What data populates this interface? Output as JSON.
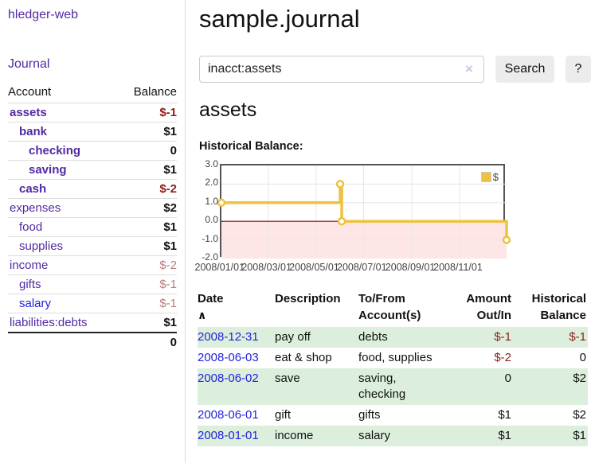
{
  "app": {
    "brand": "hledger-web",
    "nav_journal": "Journal"
  },
  "header": {
    "title": "sample.journal"
  },
  "search": {
    "value": "inacct:assets",
    "clear_icon": "×",
    "search_label": "Search",
    "help_label": "?"
  },
  "sidebar": {
    "account_header": "Account",
    "balance_header": "Balance",
    "accounts": [
      {
        "name": "assets",
        "balance": "$-1",
        "indent": 0,
        "bold": true,
        "name_color": "purple",
        "balance_class": "neg-strong"
      },
      {
        "name": "bank",
        "balance": "$1",
        "indent": 1,
        "bold": true,
        "name_color": "purple",
        "balance_class": "pos"
      },
      {
        "name": "checking",
        "balance": "0",
        "indent": 2,
        "bold": true,
        "name_color": "purple",
        "balance_class": "pos"
      },
      {
        "name": "saving",
        "balance": "$1",
        "indent": 2,
        "bold": true,
        "name_color": "purple",
        "balance_class": "pos"
      },
      {
        "name": "cash",
        "balance": "$-2",
        "indent": 1,
        "bold": true,
        "name_color": "purple",
        "balance_class": "neg-strong"
      },
      {
        "name": "expenses",
        "balance": "$2",
        "indent": 0,
        "bold": false,
        "name_color": "purple",
        "balance_class": "pos"
      },
      {
        "name": "food",
        "balance": "$1",
        "indent": 1,
        "bold": false,
        "name_color": "purple",
        "balance_class": "pos"
      },
      {
        "name": "supplies",
        "balance": "$1",
        "indent": 1,
        "bold": false,
        "name_color": "purple",
        "balance_class": "pos"
      },
      {
        "name": "income",
        "balance": "$-2",
        "indent": 0,
        "bold": false,
        "name_color": "purple",
        "balance_class": "neg-soft"
      },
      {
        "name": "gifts",
        "balance": "$-1",
        "indent": 1,
        "bold": false,
        "name_color": "purple",
        "balance_class": "neg-soft"
      },
      {
        "name": "salary",
        "balance": "$-1",
        "indent": 1,
        "bold": false,
        "name_color": "blue",
        "balance_class": "neg-soft"
      },
      {
        "name": "liabilities:debts",
        "balance": "$1",
        "indent": 0,
        "bold": false,
        "name_color": "purple",
        "balance_class": "pos"
      }
    ],
    "total": "0"
  },
  "account_page": {
    "heading": "assets",
    "chart_label": "Historical Balance:"
  },
  "chart_data": {
    "type": "line",
    "step": true,
    "title": "Historical Balance",
    "legend": "$",
    "line_color": "#edc240",
    "negative_fill": "#ffe6e6",
    "zero_line_color": "#8b0000",
    "grid_color": "#e6e6e6",
    "ylim": [
      -2,
      3
    ],
    "yticks": [
      {
        "label": "3.0",
        "value": 3
      },
      {
        "label": "2.0",
        "value": 2
      },
      {
        "label": "1.0",
        "value": 1
      },
      {
        "label": "0.0",
        "value": 0
      },
      {
        "label": "-1.0",
        "value": -1
      },
      {
        "label": "-2.0",
        "value": -2
      }
    ],
    "xrange": [
      "2008-01-01",
      "2008-12-31"
    ],
    "xticks": [
      {
        "label": "2008/01/01",
        "date": "2008-01-01"
      },
      {
        "label": "2008/03/01",
        "date": "2008-03-01"
      },
      {
        "label": "2008/05/01",
        "date": "2008-05-01"
      },
      {
        "label": "2008/07/01",
        "date": "2008-07-01"
      },
      {
        "label": "2008/09/01",
        "date": "2008-09-01"
      },
      {
        "label": "2008/11/01",
        "date": "2008-11-01"
      }
    ],
    "series": [
      {
        "name": "$",
        "points": [
          [
            "2008-01-01",
            1
          ],
          [
            "2008-06-01",
            2
          ],
          [
            "2008-06-03",
            0
          ],
          [
            "2008-12-31",
            -1
          ]
        ]
      }
    ]
  },
  "register": {
    "columns": {
      "date": "Date",
      "sort_arrow": "∧",
      "description": "Description",
      "accounts": "To/From\nAccount(s)",
      "amount": "Amount\nOut/In",
      "balance": "Historical\nBalance"
    },
    "rows": [
      {
        "date": "2008-12-31",
        "description": "pay off",
        "accounts": "debts",
        "amount": "$-1",
        "amount_class": "amt-neg",
        "balance": "$-1",
        "balance_class": "amt-neg"
      },
      {
        "date": "2008-06-03",
        "description": "eat & shop",
        "accounts": "food, supplies",
        "amount": "$-2",
        "amount_class": "amt-neg",
        "balance": "0",
        "balance_class": "amt-pos"
      },
      {
        "date": "2008-06-02",
        "description": "save",
        "accounts": "saving,\nchecking",
        "amount": "0",
        "amount_class": "amt-pos",
        "balance": "$2",
        "balance_class": "amt-pos"
      },
      {
        "date": "2008-06-01",
        "description": "gift",
        "accounts": "gifts",
        "amount": "$1",
        "amount_class": "amt-pos",
        "balance": "$2",
        "balance_class": "amt-pos"
      },
      {
        "date": "2008-01-01",
        "description": "income",
        "accounts": "salary",
        "amount": "$1",
        "amount_class": "amt-pos",
        "balance": "$1",
        "balance_class": "amt-pos"
      }
    ]
  }
}
